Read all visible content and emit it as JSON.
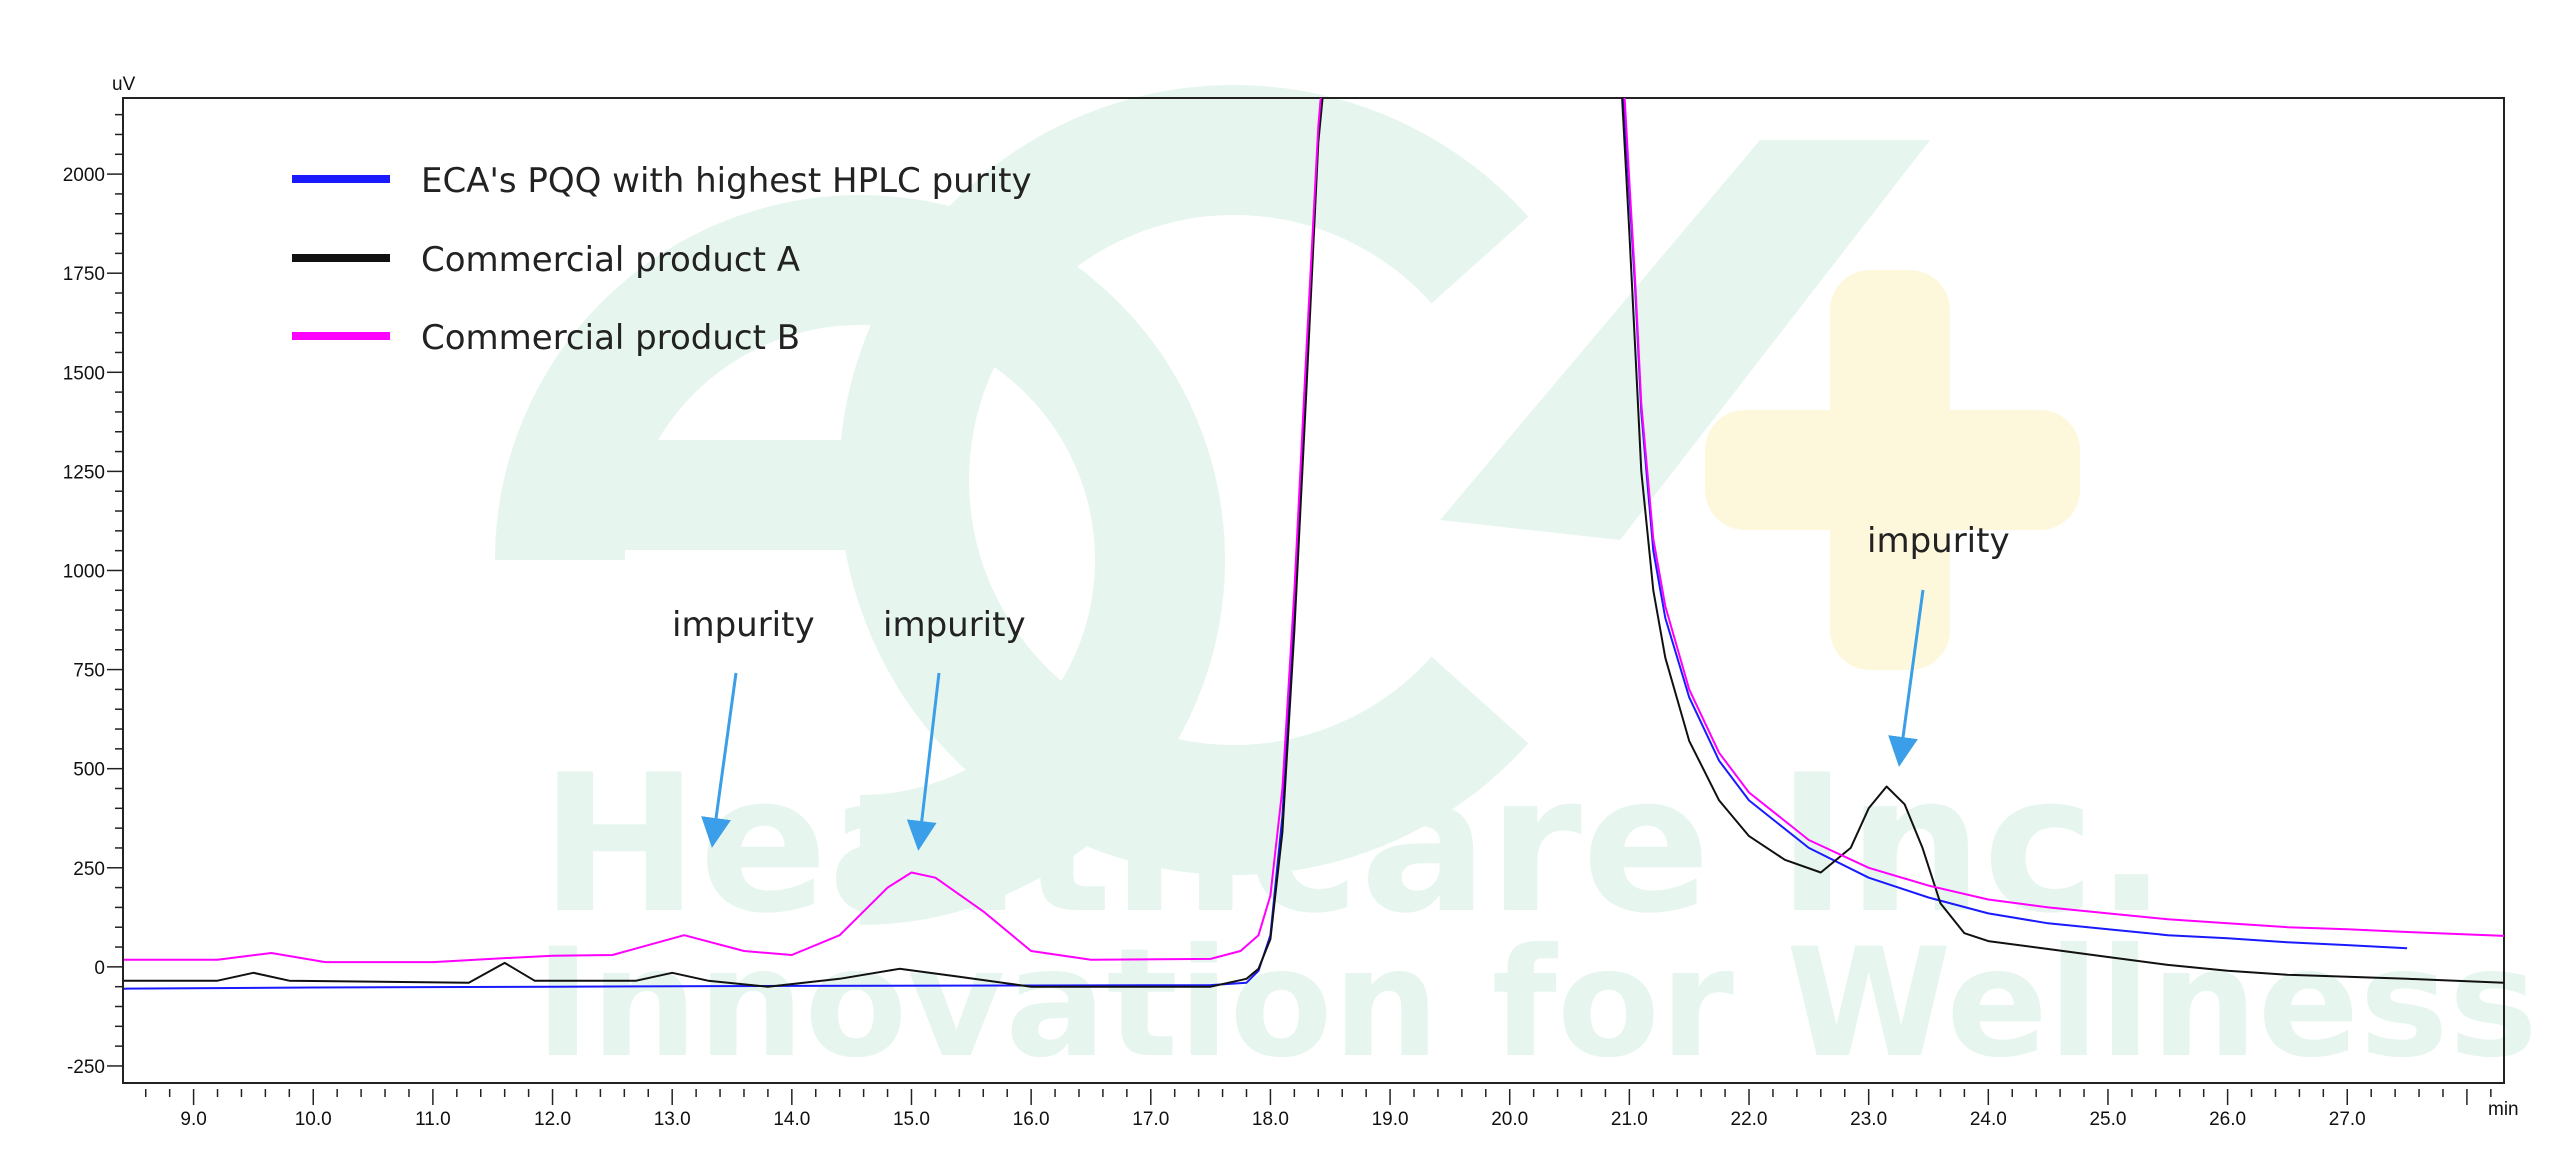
{
  "chart_data": {
    "type": "line",
    "title": "",
    "xlabel": "min",
    "ylabel": "uV",
    "xlim": [
      8.41,
      28.31
    ],
    "ylim": [
      -293,
      2192
    ],
    "x_ticks": [
      "9.0",
      "10.0",
      "11.0",
      "12.0",
      "13.0",
      "14.0",
      "15.0",
      "16.0",
      "17.0",
      "18.0",
      "19.0",
      "20.0",
      "21.0",
      "22.0",
      "23.0",
      "24.0",
      "25.0",
      "26.0",
      "27.0"
    ],
    "y_ticks": [
      "-250",
      "0",
      "250",
      "500",
      "750",
      "1000",
      "1250",
      "1500",
      "1750",
      "2000"
    ],
    "grid": false,
    "legend_position": "top-left",
    "series": [
      {
        "name": "ECA's PQQ with highest HPLC purity",
        "color": "#1a1aff",
        "points": [
          [
            8.41,
            -55
          ],
          [
            10,
            -52
          ],
          [
            12,
            -50
          ],
          [
            14,
            -48
          ],
          [
            16,
            -47
          ],
          [
            17.5,
            -46
          ],
          [
            17.8,
            -40
          ],
          [
            17.9,
            -10
          ],
          [
            18.0,
            80
          ],
          [
            18.1,
            380
          ],
          [
            18.2,
            880
          ],
          [
            18.3,
            1500
          ],
          [
            18.4,
            2100
          ],
          [
            18.46,
            2300
          ],
          [
            20.93,
            2300
          ],
          [
            21.0,
            1950
          ],
          [
            21.05,
            1700
          ],
          [
            21.1,
            1400
          ],
          [
            21.2,
            1050
          ],
          [
            21.3,
            880
          ],
          [
            21.5,
            680
          ],
          [
            21.75,
            520
          ],
          [
            22.0,
            420
          ],
          [
            22.5,
            300
          ],
          [
            23.0,
            225
          ],
          [
            23.5,
            175
          ],
          [
            24.0,
            135
          ],
          [
            24.5,
            110
          ],
          [
            25.0,
            95
          ],
          [
            25.5,
            80
          ],
          [
            26.0,
            72
          ],
          [
            26.5,
            62
          ],
          [
            27.0,
            55
          ],
          [
            27.5,
            47
          ]
        ]
      },
      {
        "name": "Commercial product A",
        "color": "#111111",
        "points": [
          [
            8.41,
            -35
          ],
          [
            9.2,
            -35
          ],
          [
            9.5,
            -15
          ],
          [
            9.8,
            -35
          ],
          [
            11.3,
            -40
          ],
          [
            11.6,
            10
          ],
          [
            11.85,
            -35
          ],
          [
            12.7,
            -35
          ],
          [
            13.0,
            -15
          ],
          [
            13.3,
            -35
          ],
          [
            13.8,
            -50
          ],
          [
            14.4,
            -30
          ],
          [
            14.9,
            -5
          ],
          [
            15.4,
            -25
          ],
          [
            16.0,
            -50
          ],
          [
            17.5,
            -50
          ],
          [
            17.8,
            -30
          ],
          [
            17.9,
            -5
          ],
          [
            18.0,
            70
          ],
          [
            18.1,
            340
          ],
          [
            18.2,
            850
          ],
          [
            18.3,
            1450
          ],
          [
            18.4,
            2080
          ],
          [
            18.47,
            2300
          ],
          [
            20.92,
            2300
          ],
          [
            21.0,
            1850
          ],
          [
            21.05,
            1550
          ],
          [
            21.1,
            1250
          ],
          [
            21.2,
            950
          ],
          [
            21.3,
            780
          ],
          [
            21.5,
            570
          ],
          [
            21.75,
            420
          ],
          [
            22.0,
            330
          ],
          [
            22.3,
            270
          ],
          [
            22.6,
            238
          ],
          [
            22.85,
            300
          ],
          [
            23.0,
            400
          ],
          [
            23.15,
            455
          ],
          [
            23.3,
            410
          ],
          [
            23.45,
            300
          ],
          [
            23.6,
            160
          ],
          [
            23.8,
            85
          ],
          [
            24.0,
            65
          ],
          [
            24.5,
            45
          ],
          [
            25.0,
            25
          ],
          [
            25.5,
            5
          ],
          [
            26.0,
            -10
          ],
          [
            26.5,
            -20
          ],
          [
            27.0,
            -25
          ],
          [
            27.5,
            -30
          ],
          [
            28.31,
            -40
          ]
        ]
      },
      {
        "name": "Commercial product B",
        "color": "#ff00ff",
        "points": [
          [
            8.41,
            18
          ],
          [
            9.2,
            18
          ],
          [
            9.65,
            35
          ],
          [
            10.1,
            12
          ],
          [
            11,
            12
          ],
          [
            11.6,
            22
          ],
          [
            12.0,
            28
          ],
          [
            12.5,
            30
          ],
          [
            13.1,
            80
          ],
          [
            13.6,
            40
          ],
          [
            14.0,
            30
          ],
          [
            14.4,
            80
          ],
          [
            14.8,
            200
          ],
          [
            15.0,
            238
          ],
          [
            15.2,
            225
          ],
          [
            15.6,
            140
          ],
          [
            16.0,
            40
          ],
          [
            16.5,
            18
          ],
          [
            17.5,
            20
          ],
          [
            17.75,
            40
          ],
          [
            17.9,
            80
          ],
          [
            18.0,
            180
          ],
          [
            18.1,
            450
          ],
          [
            18.2,
            950
          ],
          [
            18.3,
            1550
          ],
          [
            18.4,
            2120
          ],
          [
            18.45,
            2300
          ],
          [
            20.94,
            2300
          ],
          [
            21.0,
            1980
          ],
          [
            21.05,
            1720
          ],
          [
            21.1,
            1420
          ],
          [
            21.2,
            1080
          ],
          [
            21.3,
            910
          ],
          [
            21.5,
            700
          ],
          [
            21.75,
            540
          ],
          [
            22.0,
            440
          ],
          [
            22.5,
            320
          ],
          [
            23.0,
            250
          ],
          [
            23.5,
            205
          ],
          [
            24.0,
            170
          ],
          [
            24.5,
            150
          ],
          [
            25.0,
            135
          ],
          [
            25.5,
            120
          ],
          [
            26.0,
            110
          ],
          [
            26.5,
            100
          ],
          [
            27.0,
            95
          ],
          [
            27.5,
            88
          ],
          [
            28.31,
            78
          ]
        ]
      }
    ],
    "annotations": [
      {
        "text": "impurity",
        "at": [
          13.2,
          300
        ]
      },
      {
        "text": "impurity",
        "at": [
          15.0,
          300
        ]
      },
      {
        "text": "impurity",
        "at": [
          23.3,
          540
        ]
      }
    ]
  },
  "watermark": {
    "logo": "ECA",
    "line1": "Healthcare Inc.",
    "line2": "Innovation for Wellness"
  },
  "colors": {
    "arrow": "#3a9ee8",
    "watermark_green": "#e6f6ef",
    "watermark_yellow": "#fdf8dc"
  }
}
